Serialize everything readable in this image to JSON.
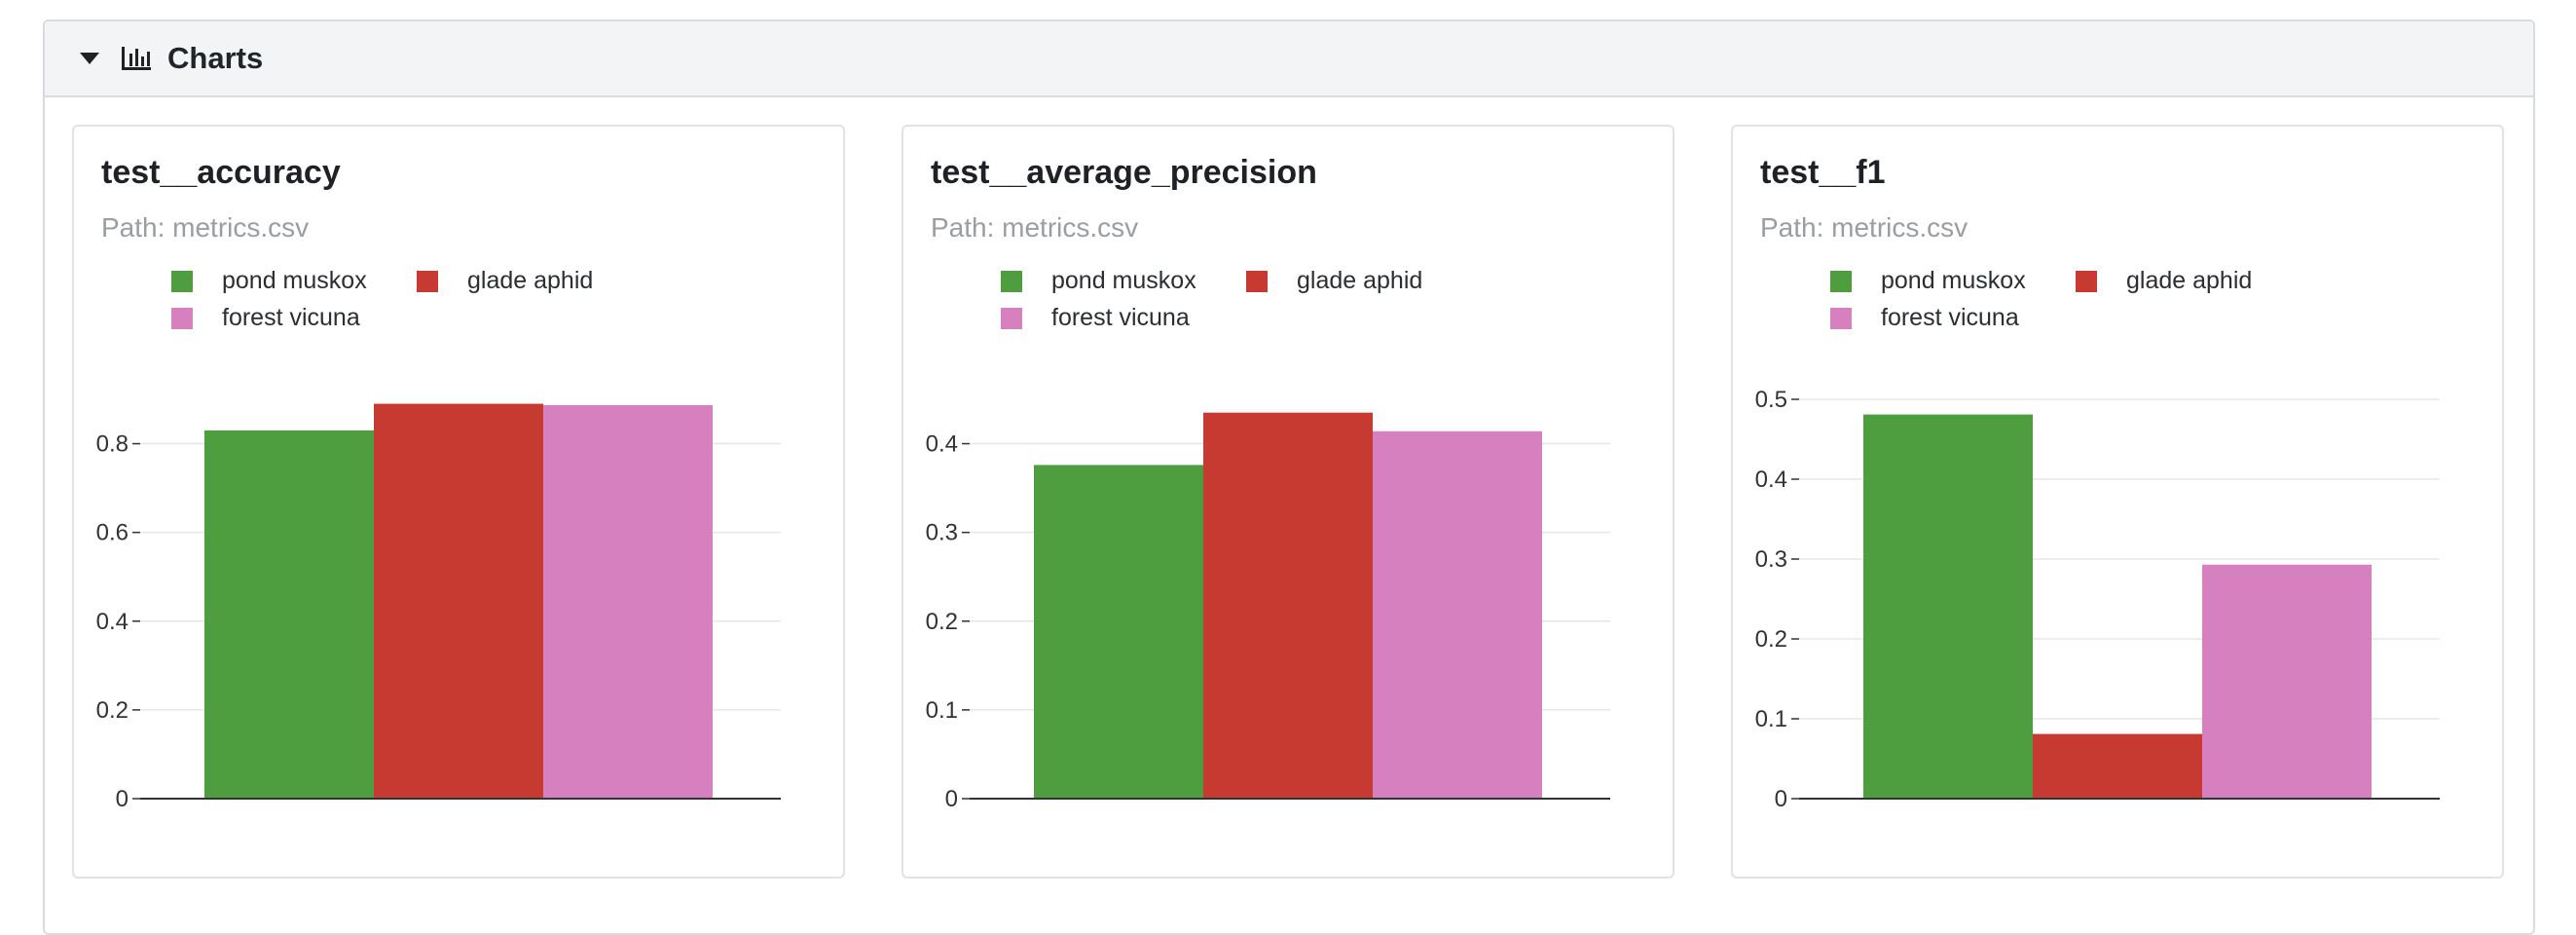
{
  "section": {
    "title": "Charts",
    "toggle_icon": "caret-down-icon",
    "icon": "bar-chart-icon"
  },
  "legend": [
    {
      "name": "pond muskox",
      "color": "#4e9e3f"
    },
    {
      "name": "glade aphid",
      "color": "#c73a31"
    },
    {
      "name": "forest vicuna",
      "color": "#d680bf"
    }
  ],
  "chart_data": [
    {
      "type": "bar",
      "title": "test__accuracy",
      "subtitle": "Path: metrics.csv",
      "series": [
        {
          "name": "pond muskox",
          "values": [
            0.83
          ]
        },
        {
          "name": "glade aphid",
          "values": [
            0.89
          ]
        },
        {
          "name": "forest vicuna",
          "values": [
            0.887
          ]
        }
      ],
      "ylim": [
        0,
        0.9
      ],
      "yticks": [
        "0",
        "0.2",
        "0.4",
        "0.6",
        "0.8"
      ],
      "ytick_values": [
        0,
        0.2,
        0.4,
        0.6,
        0.8
      ],
      "grid": true,
      "legend_position": "top-left"
    },
    {
      "type": "bar",
      "title": "test__average_precision",
      "subtitle": "Path: metrics.csv",
      "series": [
        {
          "name": "pond muskox",
          "values": [
            0.376
          ]
        },
        {
          "name": "glade aphid",
          "values": [
            0.435
          ]
        },
        {
          "name": "forest vicuna",
          "values": [
            0.414
          ]
        }
      ],
      "ylim": [
        0,
        0.45
      ],
      "yticks": [
        "0",
        "0.1",
        "0.2",
        "0.3",
        "0.4"
      ],
      "ytick_values": [
        0,
        0.1,
        0.2,
        0.3,
        0.4
      ],
      "grid": true,
      "legend_position": "top-left"
    },
    {
      "type": "bar",
      "title": "test__f1",
      "subtitle": "Path: metrics.csv",
      "series": [
        {
          "name": "pond muskox",
          "values": [
            0.481
          ]
        },
        {
          "name": "glade aphid",
          "values": [
            0.081
          ]
        },
        {
          "name": "forest vicuna",
          "values": [
            0.293
          ]
        }
      ],
      "ylim": [
        0,
        0.5
      ],
      "yticks": [
        "0",
        "0.1",
        "0.2",
        "0.3",
        "0.4",
        "0.5"
      ],
      "ytick_values": [
        0,
        0.1,
        0.2,
        0.3,
        0.4,
        0.5
      ],
      "grid": true,
      "legend_position": "top-left"
    }
  ]
}
